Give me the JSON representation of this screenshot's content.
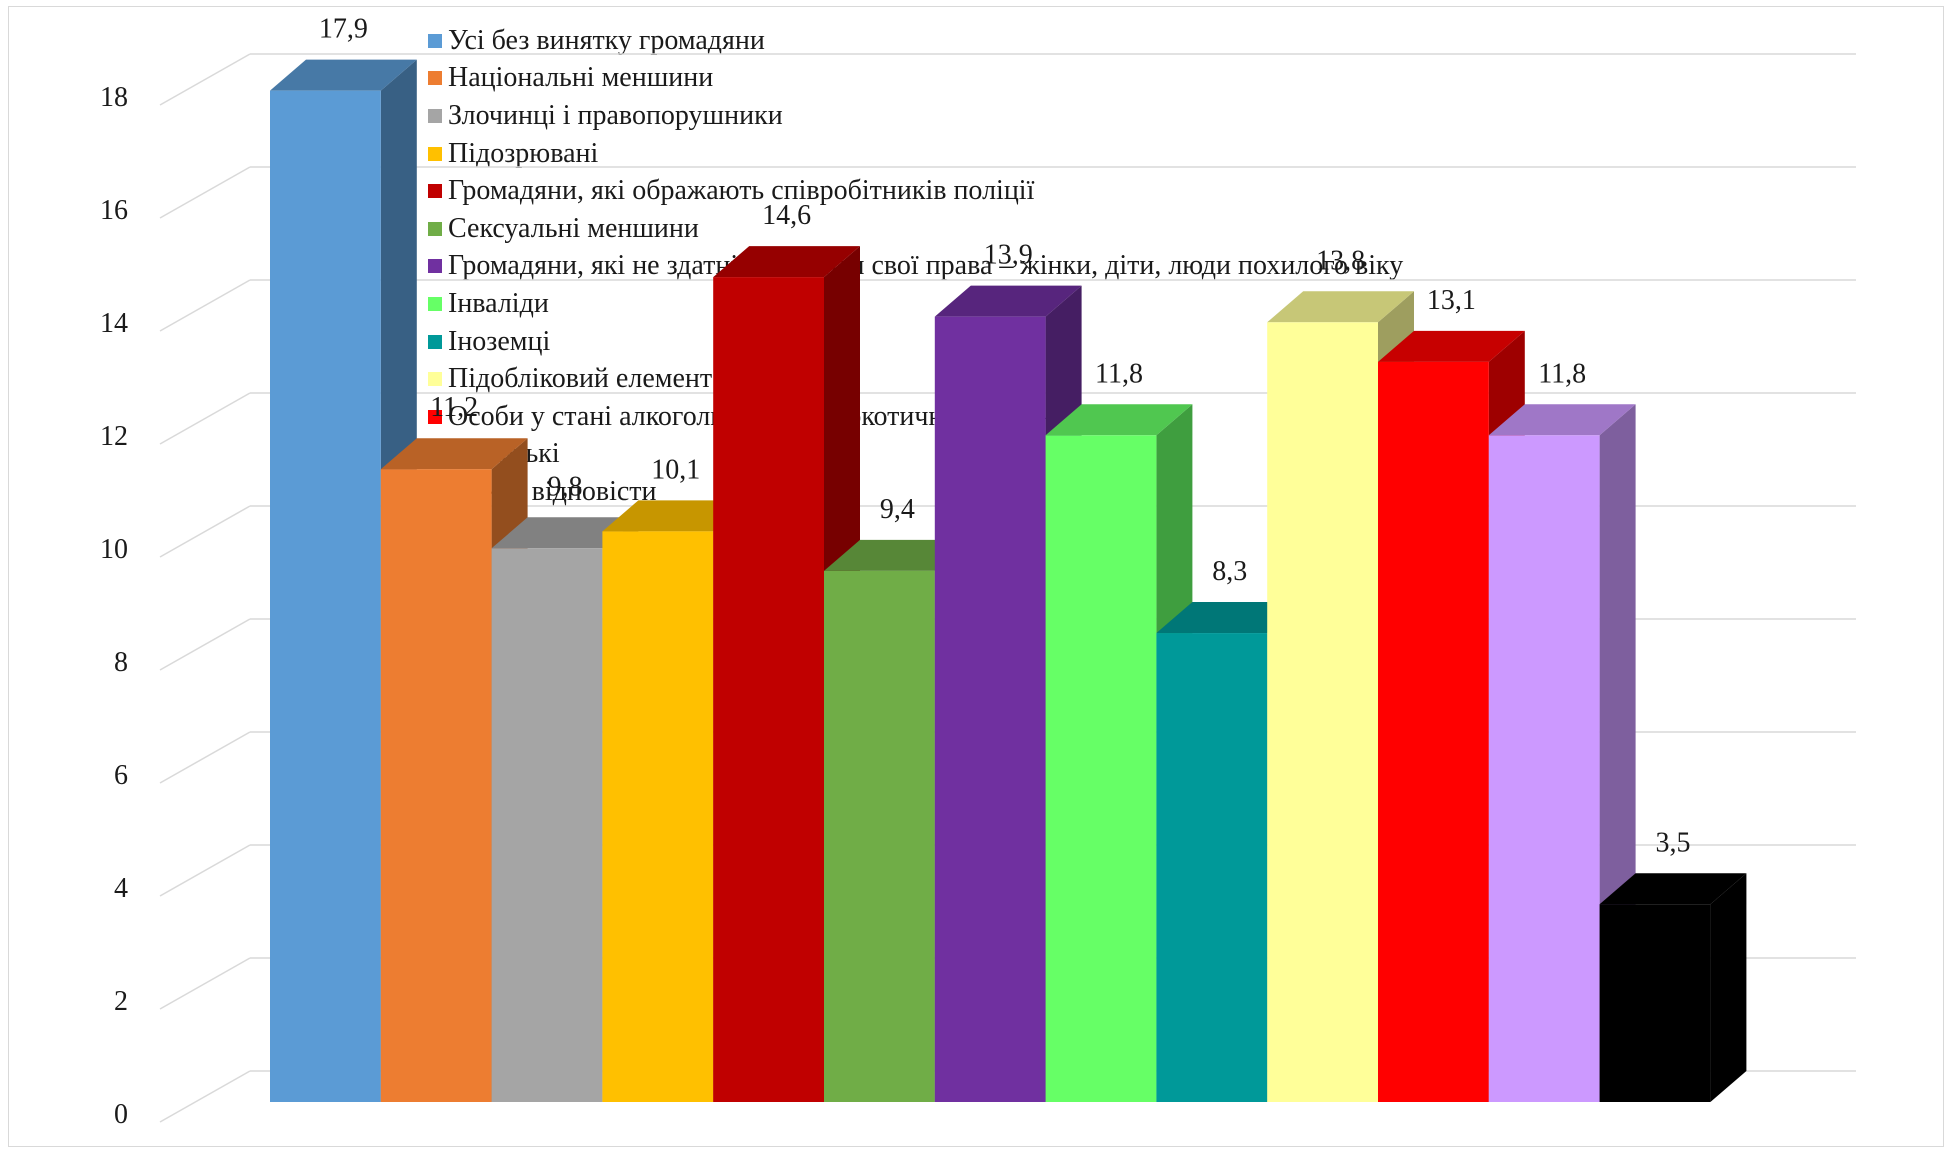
{
  "chart_data": {
    "type": "bar",
    "three_d": true,
    "title": "",
    "xlabel": "",
    "ylabel": "",
    "ylim": [
      0,
      18
    ],
    "yticks": [
      "0",
      "2",
      "4",
      "6",
      "8",
      "10",
      "12",
      "14",
      "16",
      "18"
    ],
    "grid": true,
    "legend_position": "top",
    "categories": [
      "Усі без винятку громадяни",
      "Національні меншини",
      "Злочинці і правопорушники",
      "Підозрювані",
      "Громадяни, які ображають співробітників поліції",
      "Сексуальні меншини",
      "Громадяни, які не здатні захистити свої права – жінки, діти, люди похилого віку",
      "Інваліди",
      "Іноземці",
      "Підобліковий елемент",
      "Особи у стані алкогольного чи наркотичного сп’яніння",
      "Безхатькі",
      "Важко відповісти"
    ],
    "values": [
      17.9,
      11.2,
      9.8,
      10.1,
      14.6,
      9.4,
      13.9,
      11.8,
      8.3,
      13.8,
      13.1,
      11.8,
      3.5
    ],
    "value_labels": [
      "17,9",
      "11,2",
      "9,8",
      "10,1",
      "14,6",
      "9,4",
      "13,9",
      "11,8",
      "8,3",
      "13,8",
      "13,1",
      "11,8",
      "3,5"
    ],
    "colors": [
      "#5b9bd5",
      "#ed7d31",
      "#a5a5a5",
      "#ffc000",
      "#c00000",
      "#70ad47",
      "#7030a0",
      "#66ff66",
      "#009999",
      "#ffff99",
      "#ff0000",
      "#cc99ff",
      "#000000"
    ]
  }
}
